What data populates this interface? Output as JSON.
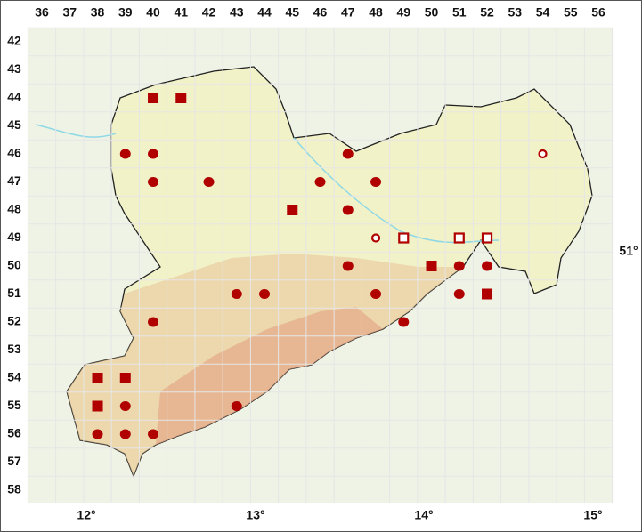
{
  "columns": [
    "36",
    "37",
    "38",
    "39",
    "40",
    "41",
    "42",
    "43",
    "44",
    "45",
    "46",
    "47",
    "48",
    "49",
    "50",
    "51",
    "52",
    "53",
    "54",
    "55",
    "56"
  ],
  "rows": [
    "42",
    "43",
    "44",
    "45",
    "46",
    "47",
    "48",
    "49",
    "50",
    "51",
    "52",
    "53",
    "54",
    "55",
    "56",
    "57",
    "58"
  ],
  "longitudes": [
    "12°",
    "13°",
    "14°",
    "15°"
  ],
  "latitude": "51°",
  "marker_color": "#b00000",
  "markers": [
    {
      "col": 40,
      "row": 44,
      "type": "filled-square"
    },
    {
      "col": 41,
      "row": 44,
      "type": "filled-square"
    },
    {
      "col": 39,
      "row": 46,
      "type": "filled-circle"
    },
    {
      "col": 40,
      "row": 46,
      "type": "filled-circle"
    },
    {
      "col": 47,
      "row": 46,
      "type": "filled-circle"
    },
    {
      "col": 54,
      "row": 46,
      "type": "open-circle"
    },
    {
      "col": 40,
      "row": 47,
      "type": "filled-circle"
    },
    {
      "col": 42,
      "row": 47,
      "type": "filled-circle"
    },
    {
      "col": 46,
      "row": 47,
      "type": "filled-circle"
    },
    {
      "col": 48,
      "row": 47,
      "type": "filled-circle"
    },
    {
      "col": 45,
      "row": 48,
      "type": "filled-square"
    },
    {
      "col": 47,
      "row": 48,
      "type": "filled-circle"
    },
    {
      "col": 48,
      "row": 49,
      "type": "open-circle"
    },
    {
      "col": 49,
      "row": 49,
      "type": "open-square"
    },
    {
      "col": 51,
      "row": 49,
      "type": "open-square"
    },
    {
      "col": 52,
      "row": 49,
      "type": "open-square"
    },
    {
      "col": 47,
      "row": 50,
      "type": "filled-circle"
    },
    {
      "col": 50,
      "row": 50,
      "type": "filled-square"
    },
    {
      "col": 51,
      "row": 50,
      "type": "filled-circle"
    },
    {
      "col": 52,
      "row": 50,
      "type": "filled-circle"
    },
    {
      "col": 43,
      "row": 51,
      "type": "filled-circle"
    },
    {
      "col": 44,
      "row": 51,
      "type": "filled-circle"
    },
    {
      "col": 48,
      "row": 51,
      "type": "filled-circle"
    },
    {
      "col": 51,
      "row": 51,
      "type": "filled-circle"
    },
    {
      "col": 52,
      "row": 51,
      "type": "filled-square"
    },
    {
      "col": 40,
      "row": 52,
      "type": "filled-circle"
    },
    {
      "col": 49,
      "row": 52,
      "type": "filled-circle"
    },
    {
      "col": 38,
      "row": 54,
      "type": "filled-square"
    },
    {
      "col": 39,
      "row": 54,
      "type": "filled-square"
    },
    {
      "col": 38,
      "row": 55,
      "type": "filled-square"
    },
    {
      "col": 39,
      "row": 55,
      "type": "filled-circle"
    },
    {
      "col": 43,
      "row": 55,
      "type": "filled-circle"
    },
    {
      "col": 38,
      "row": 56,
      "type": "filled-circle"
    },
    {
      "col": 39,
      "row": 56,
      "type": "filled-circle"
    },
    {
      "col": 40,
      "row": 56,
      "type": "filled-circle"
    }
  ]
}
